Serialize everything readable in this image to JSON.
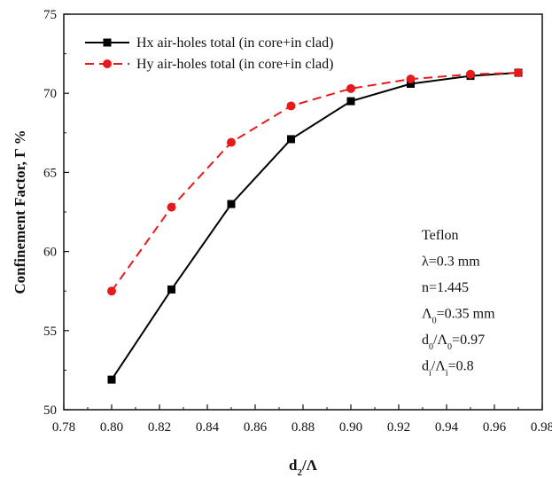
{
  "chart_data": {
    "type": "line",
    "title": "",
    "xlabel": "d₂/Λ",
    "xlabel_main": "d",
    "xlabel_sub": "2",
    "xlabel_tail": "/Λ",
    "ylabel": "Confinement Factor, Γ %",
    "xlim": [
      0.78,
      0.98
    ],
    "ylim": [
      50,
      75
    ],
    "xticks": [
      "0.78",
      "0.80",
      "0.82",
      "0.84",
      "0.86",
      "0.88",
      "0.90",
      "0.92",
      "0.94",
      "0.96",
      "0.98"
    ],
    "yticks": [
      "50",
      "55",
      "60",
      "65",
      "70",
      "75"
    ],
    "grid": false,
    "legend_position": "top-left",
    "series": [
      {
        "name": "Hx air-holes total (in core+in clad)",
        "color": "#000000",
        "marker": "square",
        "line_style": "solid",
        "x": [
          0.8,
          0.825,
          0.85,
          0.875,
          0.9,
          0.925,
          0.95,
          0.97
        ],
        "y": [
          51.9,
          57.6,
          63.0,
          67.1,
          69.5,
          70.6,
          71.1,
          71.3
        ]
      },
      {
        "name": "Hy air-holes total (in core+in clad)",
        "color": "#e8191b",
        "marker": "circle",
        "line_style": "dashed",
        "x": [
          0.8,
          0.825,
          0.85,
          0.875,
          0.9,
          0.925,
          0.95,
          0.97
        ],
        "y": [
          57.5,
          62.8,
          66.9,
          69.2,
          70.3,
          70.9,
          71.2,
          71.3
        ]
      }
    ],
    "annotation": [
      {
        "main": "Teflon"
      },
      {
        "main": "λ=0.3 mm"
      },
      {
        "main": "n=1.445"
      },
      {
        "main": "Λ",
        "sub": "0",
        "tail": "=0.35 mm"
      },
      {
        "main": "d",
        "sub": "0",
        "mid": "/Λ",
        "sub2": "0",
        "tail": "=0.97"
      },
      {
        "main": "d",
        "sub": "i",
        "mid": "/Λ",
        "sub2": "i",
        "tail": "=0.8"
      }
    ]
  }
}
